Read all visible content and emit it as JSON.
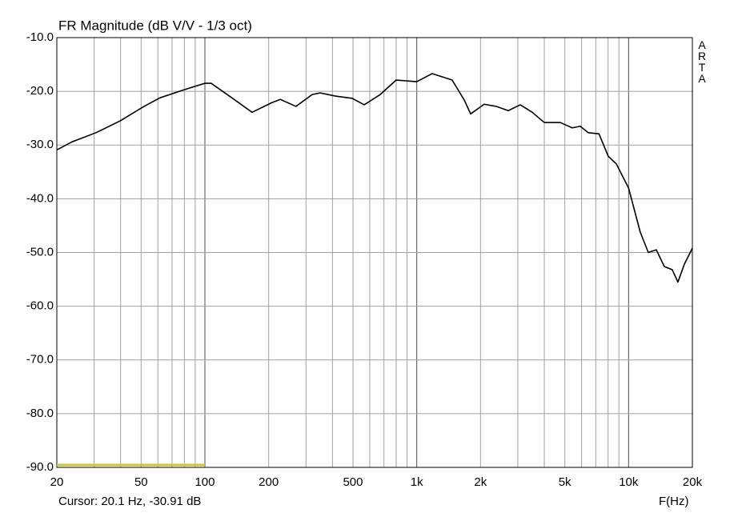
{
  "chart_data": {
    "type": "line",
    "title": "FR Magnitude (dB V/V - 1/3 oct)",
    "side_label": "ARTA",
    "cursor_text": "Cursor: 20.1 Hz, -30.91 dB",
    "xlabel": "F(Hz)",
    "xscale": "log",
    "grid": true,
    "xlim": [
      20,
      20000
    ],
    "ylim": [
      -90,
      -10
    ],
    "xticks": [
      20,
      50,
      100,
      200,
      500,
      {
        "value": 1000,
        "label": "1k"
      },
      {
        "value": 2000,
        "label": "2k"
      },
      {
        "value": 5000,
        "label": "5k"
      },
      {
        "value": 10000,
        "label": "10k"
      },
      {
        "value": 20000,
        "label": "20k"
      }
    ],
    "xminor": [
      30,
      40,
      60,
      70,
      80,
      90,
      300,
      400,
      600,
      700,
      800,
      900,
      3000,
      4000,
      6000,
      7000,
      8000,
      9000
    ],
    "yticks": [
      {
        "value": -10,
        "label": "-10.0"
      },
      {
        "value": -20,
        "label": "-20.0"
      },
      {
        "value": -30,
        "label": "-30.0"
      },
      {
        "value": -40,
        "label": "-40.0"
      },
      {
        "value": -50,
        "label": "-50.0"
      },
      {
        "value": -60,
        "label": "-60.0"
      },
      {
        "value": -70,
        "label": "-70.0"
      },
      {
        "value": -80,
        "label": "-80.0"
      },
      {
        "value": -90,
        "label": "-90.0"
      }
    ],
    "band": {
      "x": [
        20,
        100
      ],
      "y": -90,
      "color": "#c8c832"
    },
    "series": [
      {
        "color": "#000000",
        "x": [
          20,
          23.6,
          30.6,
          39.8,
          51.6,
          61.4,
          79.8,
          100,
          107,
          134,
          167,
          207,
          227,
          269,
          321,
          350,
          416,
          495,
          565,
          672,
          800,
          1000,
          1183,
          1469,
          1675,
          1796,
          2082,
          2371,
          2704,
          3080,
          3509,
          4000,
          4755,
          5420,
          5916,
          6446,
          7244,
          8019,
          8750,
          10000,
          11350,
          12390,
          13520,
          14730,
          16070,
          17090,
          18320,
          20000
        ],
        "values": [
          -30.9,
          -29.4,
          -27.7,
          -25.5,
          -22.8,
          -21.2,
          -19.7,
          -18.5,
          -18.5,
          -21.2,
          -23.9,
          -22.1,
          -21.5,
          -22.8,
          -20.6,
          -20.3,
          -20.9,
          -21.3,
          -22.5,
          -20.6,
          -17.9,
          -18.2,
          -16.7,
          -17.9,
          -21.6,
          -24.2,
          -22.4,
          -22.8,
          -23.6,
          -22.5,
          -23.9,
          -25.8,
          -25.8,
          -26.8,
          -26.5,
          -27.7,
          -27.9,
          -32.1,
          -33.5,
          -38.0,
          -46.2,
          -50.0,
          -49.5,
          -52.6,
          -53.2,
          -55.5,
          -52.2,
          -49.2
        ]
      }
    ]
  }
}
